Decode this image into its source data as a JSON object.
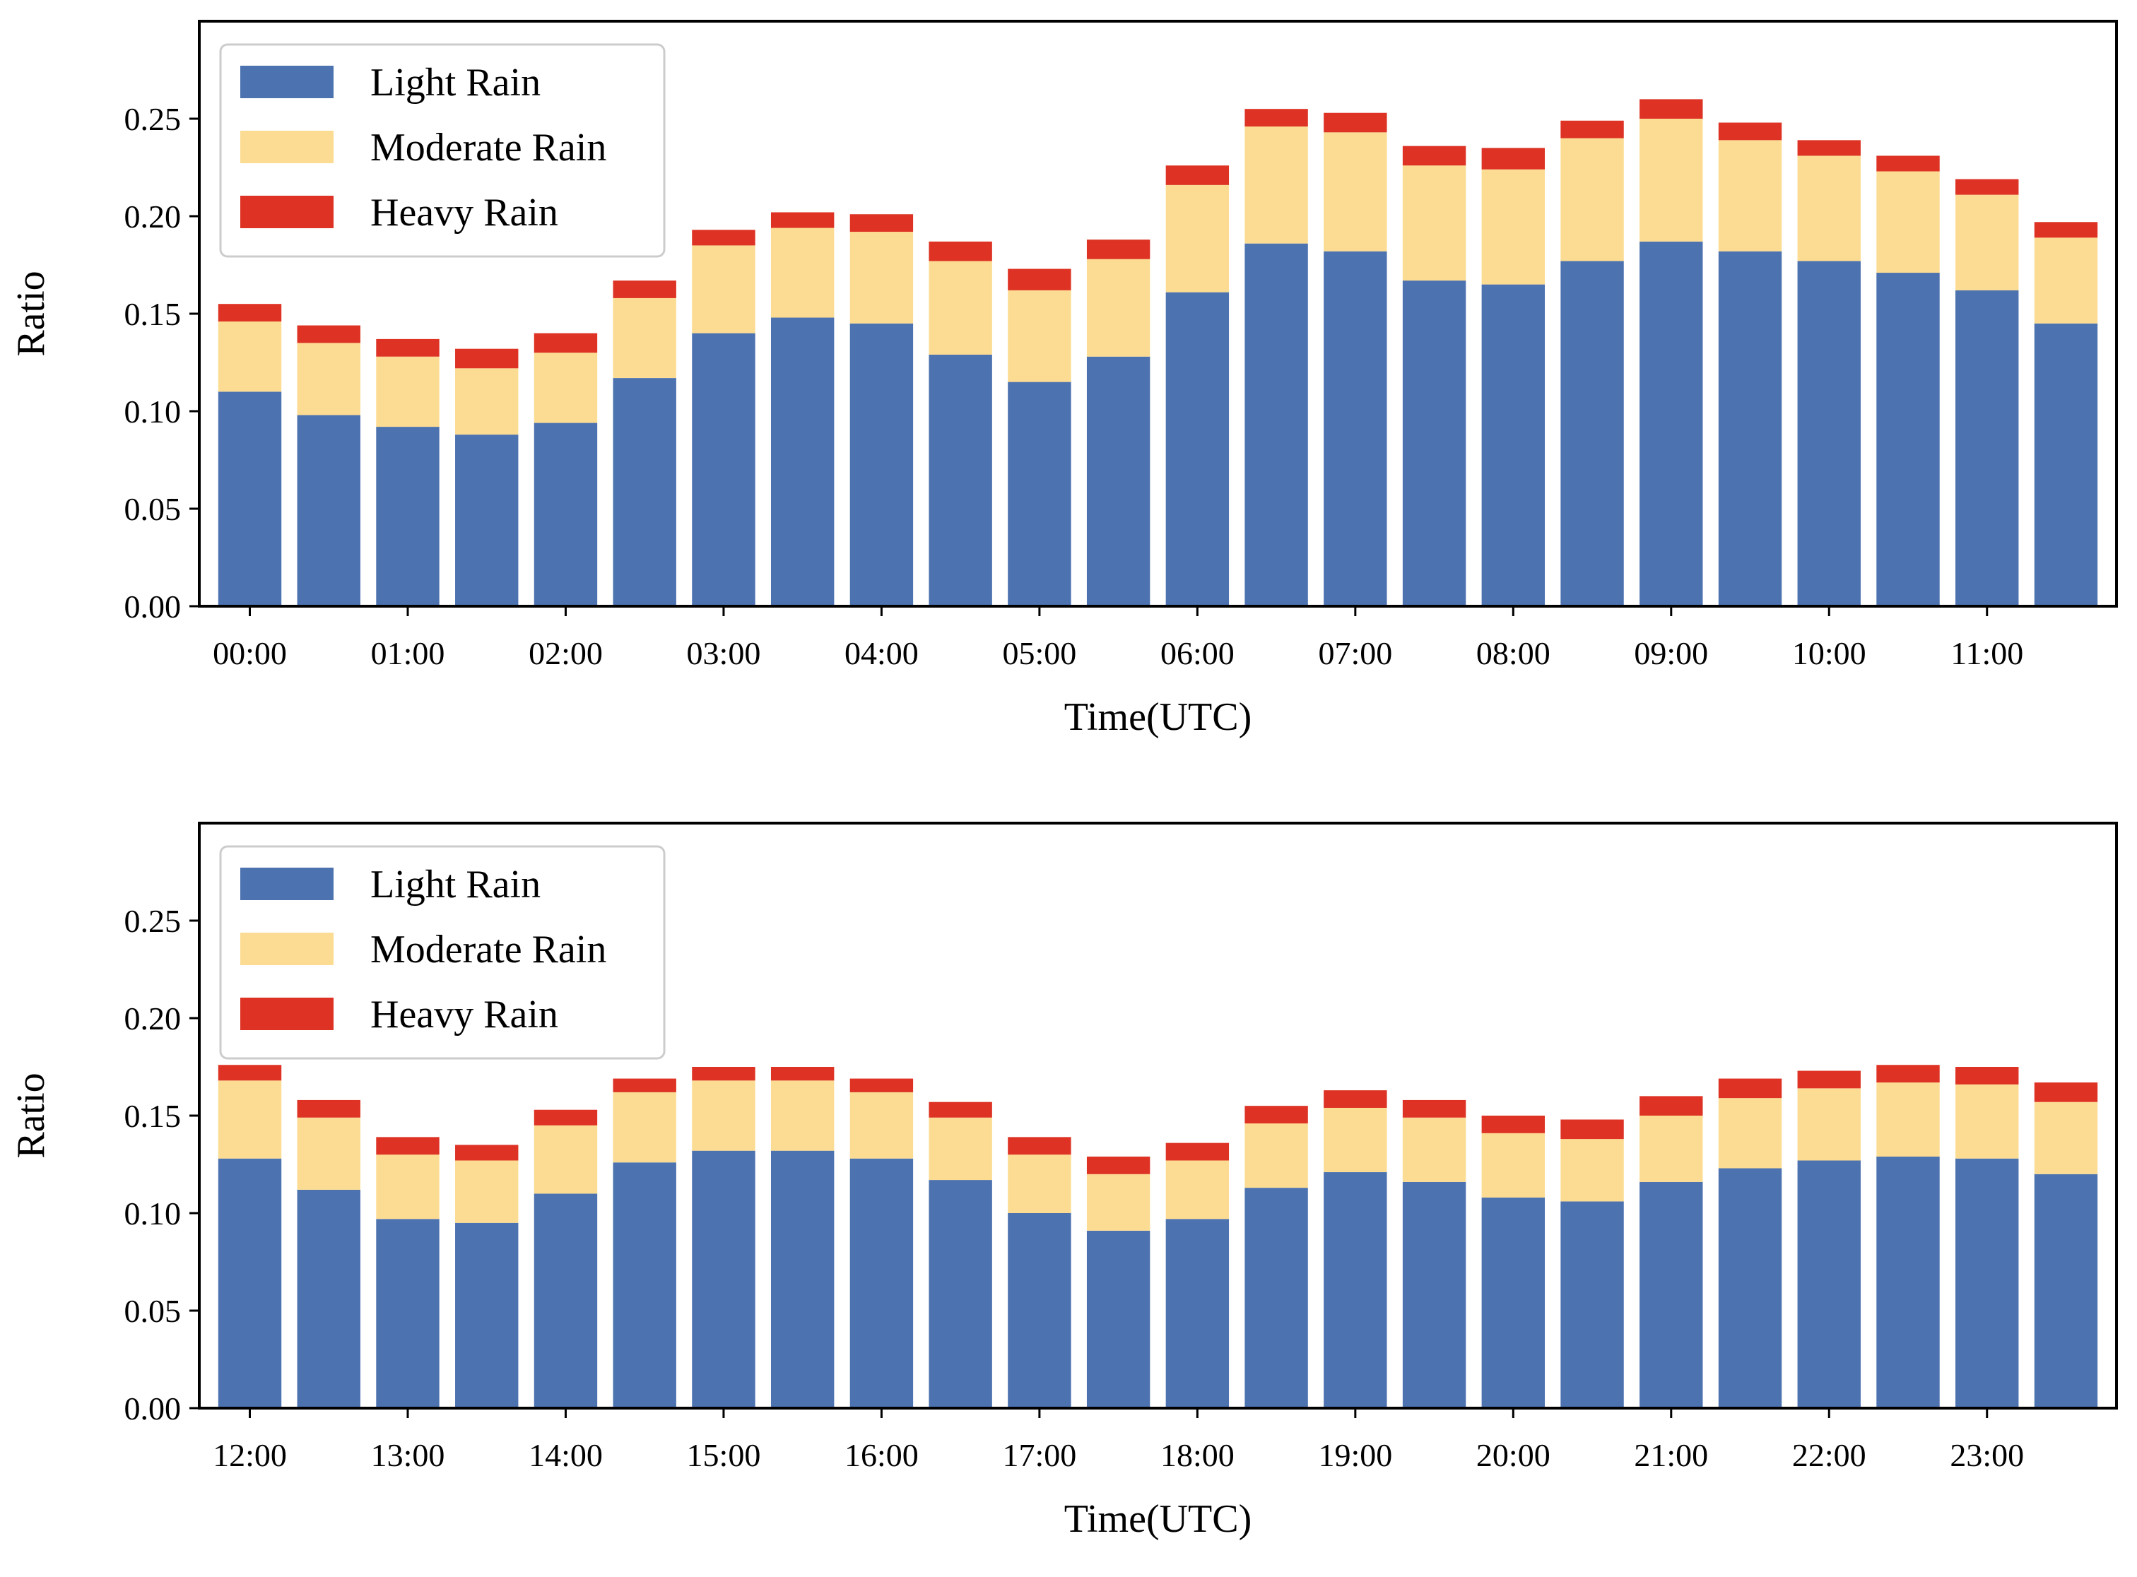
{
  "chart_data": [
    {
      "type": "bar",
      "stacked": true,
      "title": "",
      "xlabel": "Time(UTC)",
      "ylabel": "Ratio",
      "ylim": [
        0,
        0.3
      ],
      "yticks": [
        "0.00",
        "0.05",
        "0.10",
        "0.15",
        "0.20",
        "0.25"
      ],
      "xtick_labels": [
        "00:00",
        "01:00",
        "02:00",
        "03:00",
        "04:00",
        "05:00",
        "06:00",
        "07:00",
        "08:00",
        "09:00",
        "10:00",
        "11:00"
      ],
      "x": [
        0.0,
        0.5,
        1.0,
        1.5,
        2.0,
        2.5,
        3.0,
        3.5,
        4.0,
        4.5,
        5.0,
        5.5,
        6.0,
        6.5,
        7.0,
        7.5,
        8.0,
        8.5,
        9.0,
        9.5,
        10.0,
        10.5,
        11.0,
        11.5
      ],
      "legend_location": "top-left",
      "series": [
        {
          "name": "Light Rain",
          "color": "#4c72b0",
          "values": [
            0.11,
            0.098,
            0.092,
            0.088,
            0.094,
            0.117,
            0.14,
            0.148,
            0.145,
            0.129,
            0.115,
            0.128,
            0.161,
            0.186,
            0.182,
            0.167,
            0.165,
            0.177,
            0.187,
            0.182,
            0.177,
            0.171,
            0.162,
            0.145
          ]
        },
        {
          "name": "Moderate Rain",
          "color": "#fcdc92",
          "values": [
            0.036,
            0.037,
            0.036,
            0.034,
            0.036,
            0.041,
            0.045,
            0.046,
            0.047,
            0.048,
            0.047,
            0.05,
            0.055,
            0.06,
            0.061,
            0.059,
            0.059,
            0.063,
            0.063,
            0.057,
            0.054,
            0.052,
            0.049,
            0.044
          ]
        },
        {
          "name": "Heavy Rain",
          "color": "#dd3224",
          "values": [
            0.009,
            0.009,
            0.009,
            0.01,
            0.01,
            0.009,
            0.008,
            0.008,
            0.009,
            0.01,
            0.011,
            0.01,
            0.01,
            0.009,
            0.01,
            0.01,
            0.011,
            0.009,
            0.01,
            0.009,
            0.008,
            0.008,
            0.008,
            0.008
          ]
        }
      ]
    },
    {
      "type": "bar",
      "stacked": true,
      "title": "",
      "xlabel": "Time(UTC)",
      "ylabel": "Ratio",
      "ylim": [
        0,
        0.3
      ],
      "yticks": [
        "0.00",
        "0.05",
        "0.10",
        "0.15",
        "0.20",
        "0.25"
      ],
      "xtick_labels": [
        "12:00",
        "13:00",
        "14:00",
        "15:00",
        "16:00",
        "17:00",
        "18:00",
        "19:00",
        "20:00",
        "21:00",
        "22:00",
        "23:00"
      ],
      "x": [
        0.0,
        0.5,
        1.0,
        1.5,
        2.0,
        2.5,
        3.0,
        3.5,
        4.0,
        4.5,
        5.0,
        5.5,
        6.0,
        6.5,
        7.0,
        7.5,
        8.0,
        8.5,
        9.0,
        9.5,
        10.0,
        10.5,
        11.0,
        11.5
      ],
      "legend_location": "top-left",
      "series": [
        {
          "name": "Light Rain",
          "color": "#4c72b0",
          "values": [
            0.128,
            0.112,
            0.097,
            0.095,
            0.11,
            0.126,
            0.132,
            0.132,
            0.128,
            0.117,
            0.1,
            0.091,
            0.097,
            0.113,
            0.121,
            0.116,
            0.108,
            0.106,
            0.116,
            0.123,
            0.127,
            0.129,
            0.128,
            0.12
          ]
        },
        {
          "name": "Moderate Rain",
          "color": "#fcdc92",
          "values": [
            0.04,
            0.037,
            0.033,
            0.032,
            0.035,
            0.036,
            0.036,
            0.036,
            0.034,
            0.032,
            0.03,
            0.029,
            0.03,
            0.033,
            0.033,
            0.033,
            0.033,
            0.032,
            0.034,
            0.036,
            0.037,
            0.038,
            0.038,
            0.037
          ]
        },
        {
          "name": "Heavy Rain",
          "color": "#dd3224",
          "values": [
            0.008,
            0.009,
            0.009,
            0.008,
            0.008,
            0.007,
            0.007,
            0.007,
            0.007,
            0.008,
            0.009,
            0.009,
            0.009,
            0.009,
            0.009,
            0.009,
            0.009,
            0.01,
            0.01,
            0.01,
            0.009,
            0.009,
            0.009,
            0.01
          ]
        }
      ]
    }
  ]
}
